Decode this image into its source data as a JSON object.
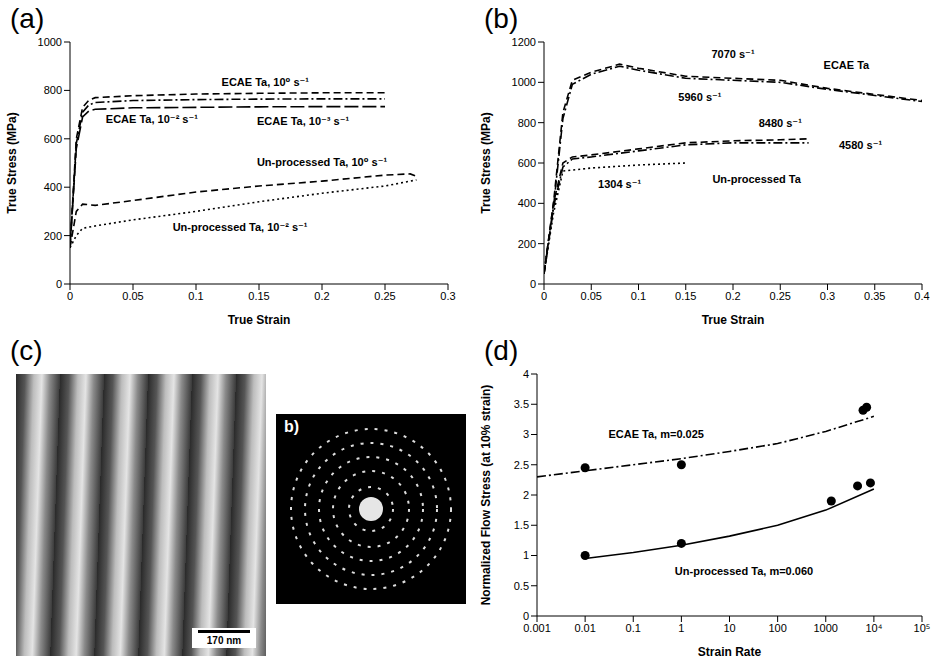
{
  "chart_data": [
    {
      "type": "line",
      "title": "(a)",
      "x_label": "True Strain",
      "y_label": "True Stress (MPa)",
      "xlim": [
        0,
        0.3
      ],
      "xticks": [
        0,
        0.05,
        0.1,
        0.15,
        0.2,
        0.25,
        0.3
      ],
      "ylim": [
        0,
        1000
      ],
      "yticks": [
        0,
        200,
        400,
        600,
        800,
        1000
      ],
      "grid": false,
      "series": [
        {
          "name": "ECAE Ta, 10⁰ s⁻¹",
          "color": "#000000",
          "line_style": "dashed",
          "label_at": [
            0.155,
            835
          ],
          "x": [
            0,
            0.005,
            0.01,
            0.015,
            0.02,
            0.05,
            0.1,
            0.15,
            0.2,
            0.25
          ],
          "values": [
            150,
            600,
            730,
            760,
            770,
            778,
            785,
            788,
            790,
            790
          ]
        },
        {
          "name": "ECAE Ta, 10⁻² s⁻¹",
          "color": "#000000",
          "line_style": "dashdot",
          "label_at": [
            0.065,
            680
          ],
          "x": [
            0,
            0.005,
            0.01,
            0.015,
            0.02,
            0.05,
            0.1,
            0.15,
            0.2,
            0.25
          ],
          "values": [
            150,
            580,
            710,
            740,
            750,
            758,
            762,
            764,
            765,
            765
          ]
        },
        {
          "name": "ECAE Ta, 10⁻³ s⁻¹",
          "color": "#000000",
          "line_style": "longdash",
          "label_at": [
            0.185,
            675
          ],
          "x": [
            0,
            0.005,
            0.01,
            0.015,
            0.02,
            0.05,
            0.1,
            0.15,
            0.2,
            0.25
          ],
          "values": [
            150,
            560,
            690,
            715,
            722,
            728,
            730,
            732,
            733,
            733
          ]
        },
        {
          "name": "Un-processed Ta, 10⁰ s⁻¹",
          "color": "#000000",
          "line_style": "dashed",
          "label_at": [
            0.2,
            505
          ],
          "x": [
            0,
            0.005,
            0.01,
            0.02,
            0.05,
            0.1,
            0.15,
            0.2,
            0.25,
            0.27,
            0.275
          ],
          "values": [
            150,
            300,
            330,
            325,
            345,
            380,
            405,
            425,
            450,
            455,
            445
          ]
        },
        {
          "name": "Un-processed Ta, 10⁻² s⁻¹",
          "color": "#000000",
          "line_style": "dotted",
          "label_at": [
            0.135,
            235
          ],
          "x": [
            0,
            0.005,
            0.01,
            0.02,
            0.05,
            0.1,
            0.15,
            0.2,
            0.25,
            0.275
          ],
          "values": [
            150,
            200,
            230,
            240,
            265,
            300,
            340,
            375,
            405,
            430
          ]
        }
      ]
    },
    {
      "type": "line",
      "title": "(b)",
      "x_label": "True Strain",
      "y_label": "True Stress (MPa)",
      "xlim": [
        0,
        0.4
      ],
      "xticks": [
        0,
        0.05,
        0.1,
        0.15,
        0.2,
        0.25,
        0.3,
        0.35,
        0.4
      ],
      "ylim": [
        0,
        1200
      ],
      "yticks": [
        0,
        200,
        400,
        600,
        800,
        1000,
        1200
      ],
      "grid": false,
      "annotations": [
        {
          "text": "ECAE Ta",
          "x": 0.32,
          "y": 1085
        },
        {
          "text": "Un-processed Ta",
          "x": 0.225,
          "y": 520
        }
      ],
      "series": [
        {
          "name": "7070 s⁻¹",
          "color": "#000000",
          "line_style": "dashed",
          "label_at": [
            0.2,
            1140
          ],
          "x": [
            0,
            0.01,
            0.02,
            0.03,
            0.05,
            0.08,
            0.1,
            0.15,
            0.2,
            0.25,
            0.3,
            0.35,
            0.4
          ],
          "values": [
            50,
            400,
            850,
            1010,
            1050,
            1090,
            1070,
            1030,
            1020,
            1010,
            970,
            940,
            910
          ]
        },
        {
          "name": "5960 s⁻¹",
          "color": "#000000",
          "line_style": "dashdot",
          "label_at": [
            0.165,
            925
          ],
          "x": [
            0,
            0.01,
            0.02,
            0.03,
            0.05,
            0.08,
            0.1,
            0.15,
            0.2,
            0.25,
            0.3,
            0.35,
            0.4
          ],
          "values": [
            50,
            380,
            820,
            990,
            1040,
            1080,
            1060,
            1020,
            1010,
            1000,
            965,
            935,
            905
          ]
        },
        {
          "name": "8480 s⁻¹",
          "color": "#000000",
          "line_style": "dashed",
          "label_at": [
            0.25,
            800
          ],
          "x": [
            0,
            0.01,
            0.02,
            0.03,
            0.05,
            0.1,
            0.15,
            0.2,
            0.25,
            0.28
          ],
          "values": [
            50,
            400,
            600,
            630,
            640,
            670,
            700,
            710,
            715,
            720
          ]
        },
        {
          "name": "4580 s⁻¹",
          "color": "#000000",
          "line_style": "dashdot",
          "label_at": [
            0.335,
            690
          ],
          "x": [
            0,
            0.01,
            0.02,
            0.03,
            0.05,
            0.1,
            0.15,
            0.2,
            0.25,
            0.28
          ],
          "values": [
            50,
            380,
            580,
            620,
            630,
            660,
            690,
            700,
            700,
            700
          ]
        },
        {
          "name": "1304 s⁻¹",
          "color": "#000000",
          "line_style": "dotted",
          "label_at": [
            0.08,
            495
          ],
          "x": [
            0,
            0.01,
            0.02,
            0.05,
            0.1,
            0.15
          ],
          "values": [
            50,
            350,
            560,
            575,
            590,
            600
          ]
        }
      ]
    },
    {
      "type": "scatter",
      "title": "(d)",
      "x_label": "Strain Rate",
      "y_label": "Normalized Flow Stress (at 10% strain)",
      "log": "x",
      "grid": false,
      "xlim": [
        0.001,
        100000
      ],
      "xticks": [
        0.001,
        0.01,
        0.1,
        1,
        10,
        100,
        1000,
        {
          "value": 10000,
          "label": "10⁴"
        },
        {
          "value": 100000,
          "label": "10⁵"
        }
      ],
      "ylim": [
        0,
        4
      ],
      "yticks": [
        0,
        0.5,
        1,
        1.5,
        2,
        2.5,
        3,
        3.5,
        4
      ],
      "annotations": [
        {
          "text": "ECAE Ta, m=0.025",
          "x": 0.3,
          "y": 3.0
        },
        {
          "text": "Un-processed Ta, m=0.060",
          "x": 20,
          "y": 0.75
        }
      ],
      "series": [
        {
          "type": "scatter",
          "color": "#000000",
          "marker": "circle",
          "x": [
            0.01,
            1,
            5960,
            7070
          ],
          "values": [
            2.45,
            2.5,
            3.4,
            3.45
          ]
        },
        {
          "type": "line",
          "color": "#000000",
          "line_style": "dashdot",
          "x": [
            0.001,
            0.01,
            0.1,
            1,
            10,
            100,
            1000,
            10000
          ],
          "values": [
            2.3,
            2.4,
            2.5,
            2.6,
            2.72,
            2.85,
            3.05,
            3.3
          ]
        },
        {
          "type": "scatter",
          "color": "#000000",
          "marker": "circle",
          "x": [
            0.01,
            1,
            1304,
            4580,
            8480
          ],
          "values": [
            1.0,
            1.2,
            1.9,
            2.15,
            2.2
          ]
        },
        {
          "type": "line",
          "color": "#000000",
          "line_style": "solid",
          "x": [
            0.01,
            0.1,
            1,
            10,
            100,
            1000,
            10000
          ],
          "values": [
            0.95,
            1.05,
            1.17,
            1.32,
            1.5,
            1.75,
            2.1
          ]
        }
      ]
    }
  ],
  "micrograph": {
    "title": "(c)",
    "scale_bar": "170 nm",
    "inset_label": "b)"
  }
}
